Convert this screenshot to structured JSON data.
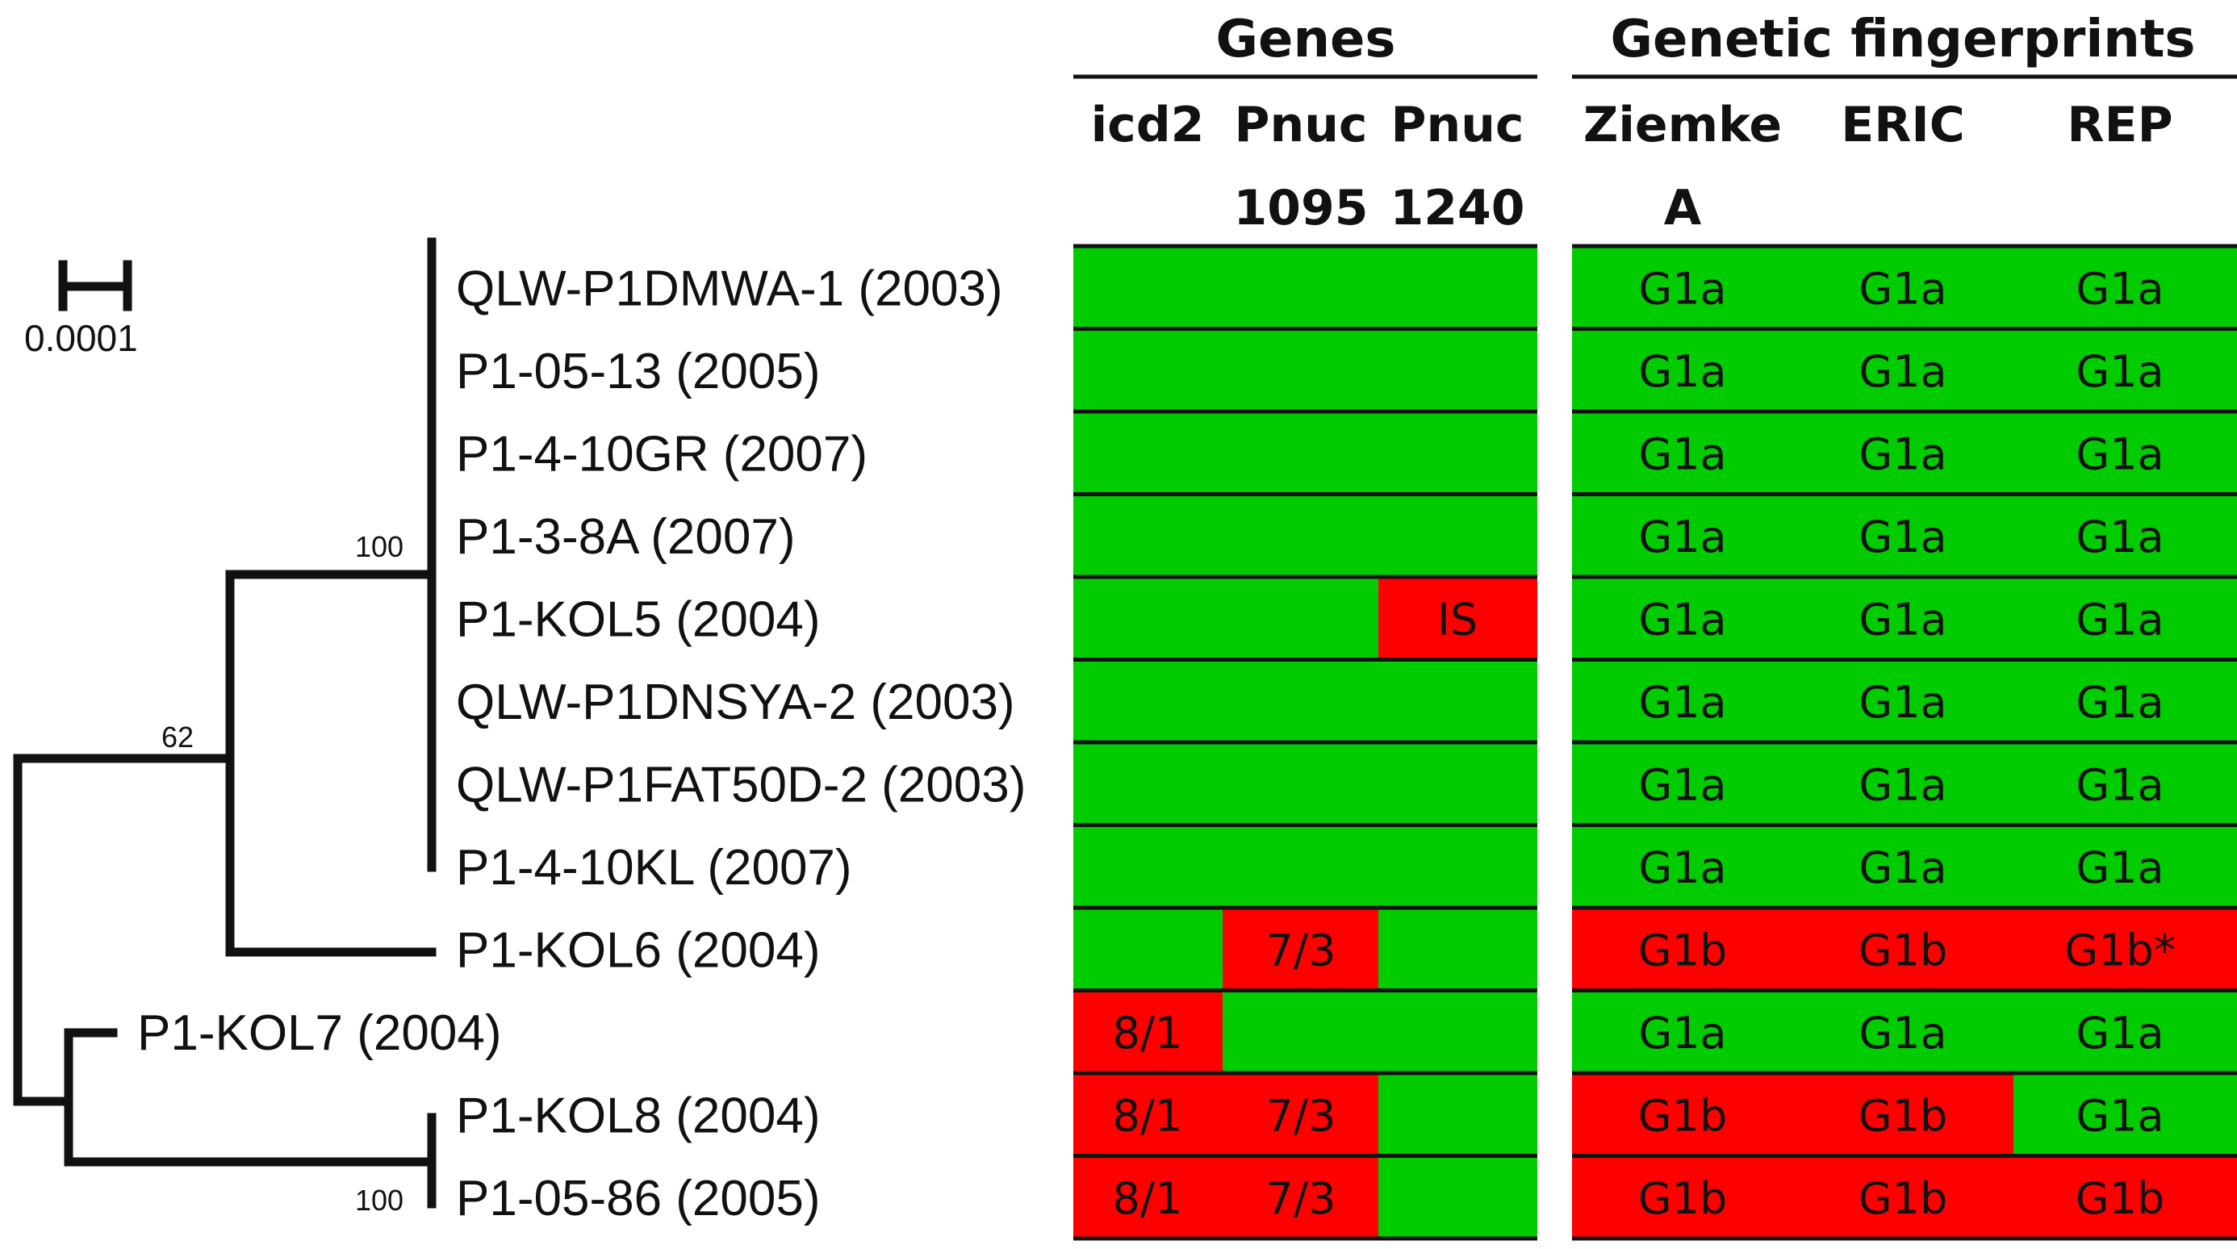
{
  "scale_bar": {
    "label": "0.0001"
  },
  "bootstrap": {
    "top_clade": "100",
    "mid_clade": "62",
    "bottom_clade": "100"
  },
  "headers": {
    "genes": "Genes",
    "fingerprints": "Genetic fingerprints",
    "gene_columns": [
      {
        "line1": "icd2",
        "line2": ""
      },
      {
        "line1": "Pnuc",
        "line2": "1095"
      },
      {
        "line1": "Pnuc",
        "line2": "1240"
      }
    ],
    "fp_columns": [
      {
        "line1": "Ziemke",
        "line2": "A"
      },
      {
        "line1": "ERIC",
        "line2": ""
      },
      {
        "line1": "REP",
        "line2": ""
      }
    ]
  },
  "colors": {
    "green": "#00cc00",
    "red": "#ff0000",
    "line": "#111111"
  },
  "strains": [
    {
      "name": "QLW-P1DMWA-1 (2003)",
      "genes": [
        {
          "v": "",
          "c": "green"
        },
        {
          "v": "",
          "c": "green"
        },
        {
          "v": "",
          "c": "green"
        }
      ],
      "fp": [
        {
          "v": "G1a",
          "c": "green"
        },
        {
          "v": "G1a",
          "c": "green"
        },
        {
          "v": "G1a",
          "c": "green"
        }
      ]
    },
    {
      "name": "P1-05-13 (2005)",
      "genes": [
        {
          "v": "",
          "c": "green"
        },
        {
          "v": "",
          "c": "green"
        },
        {
          "v": "",
          "c": "green"
        }
      ],
      "fp": [
        {
          "v": "G1a",
          "c": "green"
        },
        {
          "v": "G1a",
          "c": "green"
        },
        {
          "v": "G1a",
          "c": "green"
        }
      ]
    },
    {
      "name": "P1-4-10GR (2007)",
      "genes": [
        {
          "v": "",
          "c": "green"
        },
        {
          "v": "",
          "c": "green"
        },
        {
          "v": "",
          "c": "green"
        }
      ],
      "fp": [
        {
          "v": "G1a",
          "c": "green"
        },
        {
          "v": "G1a",
          "c": "green"
        },
        {
          "v": "G1a",
          "c": "green"
        }
      ]
    },
    {
      "name": "P1-3-8A (2007)",
      "genes": [
        {
          "v": "",
          "c": "green"
        },
        {
          "v": "",
          "c": "green"
        },
        {
          "v": "",
          "c": "green"
        }
      ],
      "fp": [
        {
          "v": "G1a",
          "c": "green"
        },
        {
          "v": "G1a",
          "c": "green"
        },
        {
          "v": "G1a",
          "c": "green"
        }
      ]
    },
    {
      "name": "P1-KOL5 (2004)",
      "genes": [
        {
          "v": "",
          "c": "green"
        },
        {
          "v": "",
          "c": "green"
        },
        {
          "v": "IS",
          "c": "red"
        }
      ],
      "fp": [
        {
          "v": "G1a",
          "c": "green"
        },
        {
          "v": "G1a",
          "c": "green"
        },
        {
          "v": "G1a",
          "c": "green"
        }
      ]
    },
    {
      "name": "QLW-P1DNSYA-2 (2003)",
      "genes": [
        {
          "v": "",
          "c": "green"
        },
        {
          "v": "",
          "c": "green"
        },
        {
          "v": "",
          "c": "green"
        }
      ],
      "fp": [
        {
          "v": "G1a",
          "c": "green"
        },
        {
          "v": "G1a",
          "c": "green"
        },
        {
          "v": "G1a",
          "c": "green"
        }
      ]
    },
    {
      "name": "QLW-P1FAT50D-2 (2003)",
      "genes": [
        {
          "v": "",
          "c": "green"
        },
        {
          "v": "",
          "c": "green"
        },
        {
          "v": "",
          "c": "green"
        }
      ],
      "fp": [
        {
          "v": "G1a",
          "c": "green"
        },
        {
          "v": "G1a",
          "c": "green"
        },
        {
          "v": "G1a",
          "c": "green"
        }
      ]
    },
    {
      "name": "P1-4-10KL (2007)",
      "genes": [
        {
          "v": "",
          "c": "green"
        },
        {
          "v": "",
          "c": "green"
        },
        {
          "v": "",
          "c": "green"
        }
      ],
      "fp": [
        {
          "v": "G1a",
          "c": "green"
        },
        {
          "v": "G1a",
          "c": "green"
        },
        {
          "v": "G1a",
          "c": "green"
        }
      ]
    },
    {
      "name": "P1-KOL6 (2004)",
      "genes": [
        {
          "v": "",
          "c": "green"
        },
        {
          "v": "7/3",
          "c": "red"
        },
        {
          "v": "",
          "c": "green"
        }
      ],
      "fp": [
        {
          "v": "G1b",
          "c": "red"
        },
        {
          "v": "G1b",
          "c": "red"
        },
        {
          "v": "G1b*",
          "c": "red"
        }
      ]
    },
    {
      "name": "P1-KOL7 (2004)",
      "genes": [
        {
          "v": "8/1",
          "c": "red"
        },
        {
          "v": "",
          "c": "green"
        },
        {
          "v": "",
          "c": "green"
        }
      ],
      "fp": [
        {
          "v": "G1a",
          "c": "green"
        },
        {
          "v": "G1a",
          "c": "green"
        },
        {
          "v": "G1a",
          "c": "green"
        }
      ]
    },
    {
      "name": "P1-KOL8 (2004)",
      "genes": [
        {
          "v": "8/1",
          "c": "red"
        },
        {
          "v": "7/3",
          "c": "red"
        },
        {
          "v": "",
          "c": "green"
        }
      ],
      "fp": [
        {
          "v": "G1b",
          "c": "red"
        },
        {
          "v": "G1b",
          "c": "red"
        },
        {
          "v": "G1a",
          "c": "green"
        }
      ]
    },
    {
      "name": "P1-05-86 (2005)",
      "genes": [
        {
          "v": "8/1",
          "c": "red"
        },
        {
          "v": "7/3",
          "c": "red"
        },
        {
          "v": "",
          "c": "green"
        }
      ],
      "fp": [
        {
          "v": "G1b",
          "c": "red"
        },
        {
          "v": "G1b",
          "c": "red"
        },
        {
          "v": "G1b",
          "c": "red"
        }
      ]
    }
  ]
}
